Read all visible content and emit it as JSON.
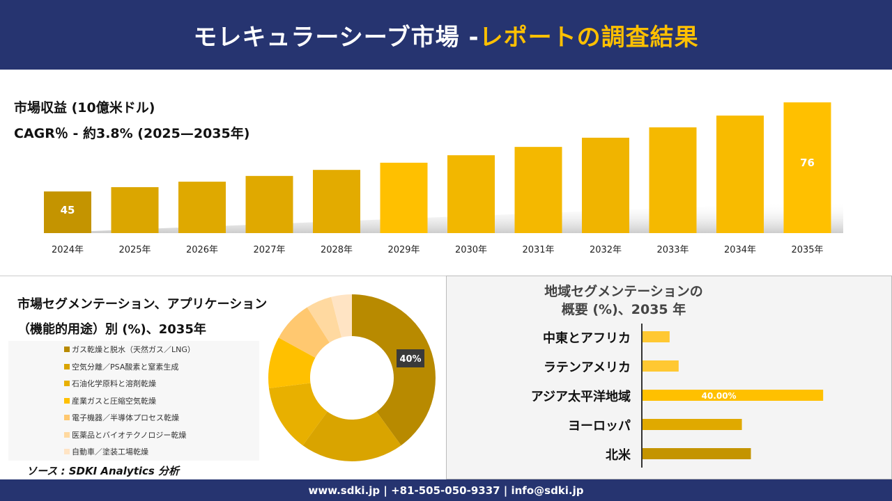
{
  "header": {
    "title_main": "モレキュラーシーブ市場 -",
    "title_accent": "レポートの調査結果"
  },
  "revenue": {
    "title": "市場収益 (10億米ドル)",
    "cagr": "CAGR％ - 約3.8% (2025—2035年)"
  },
  "chart_data": [
    {
      "type": "bar",
      "categories": [
        "2024年",
        "2025年",
        "2026年",
        "2027年",
        "2028年",
        "2029年",
        "2030年",
        "2031年",
        "2032年",
        "2033年",
        "2034年",
        "2035年"
      ],
      "values": [
        45,
        46.5,
        48.4,
        50.4,
        52.5,
        55,
        57.6,
        60.5,
        63.7,
        67.3,
        71.4,
        76
      ],
      "data_labels": {
        "0": "45",
        "11": "76"
      },
      "colors": [
        "#c49400",
        "#dba600",
        "#dfa900",
        "#e0a900",
        "#e3ab00",
        "#ffc000",
        "#f2b700",
        "#f4b800",
        "#f0b400",
        "#f5b900",
        "#f8bb00",
        "#ffc000"
      ],
      "grid": false
    },
    {
      "type": "pie",
      "donut": true,
      "title": "市場セグメンテーション、アプリケーション（機能的用途）別 (%)、2035年",
      "labels": [
        "ガス乾燥と脱水（天然ガス／LNG）",
        "空気分離／PSA酸素と窒素生成",
        "石油化学原料と溶剤乾燥",
        "産業ガスと圧縮空気乾燥",
        "電子機器／半導体プロセス乾燥",
        "医薬品とバイオテクノロジー乾燥",
        "自動車／塗装工場乾燥"
      ],
      "values": [
        40,
        20,
        13,
        10,
        8,
        5,
        4
      ],
      "colors": [
        "#b88a00",
        "#d9a400",
        "#e8b000",
        "#ffc000",
        "#ffc870",
        "#ffd9a0",
        "#ffe4c4"
      ],
      "data_label": "40%",
      "legend": "left"
    },
    {
      "type": "bar",
      "orientation": "horizontal",
      "title": "地域セグメンテーションの概要 (%)、2035 年",
      "categories": [
        "中東とアフリカ",
        "ラテンアメリカ",
        "アジア太平洋地域",
        "ヨーロッパ",
        "北米"
      ],
      "values": [
        6,
        8,
        40,
        22,
        24
      ],
      "data_label": "40.00%",
      "colors": [
        "#ffc832",
        "#ffc832",
        "#ffc000",
        "#e0a900",
        "#c49400"
      ]
    }
  ],
  "seg_title_line1": "市場セグメンテーション、アプリケーション",
  "seg_title_line2": "（機能的用途）別 (%)、2035年",
  "reg_title_line1": "地域セグメンテーションの",
  "reg_title_line2": "概要 (%)、2035 年",
  "source": "ソース : SDKI Analytics 分析",
  "footer": "www.sdki.jp | +81-505-050-9337 | info@sdki.jp"
}
